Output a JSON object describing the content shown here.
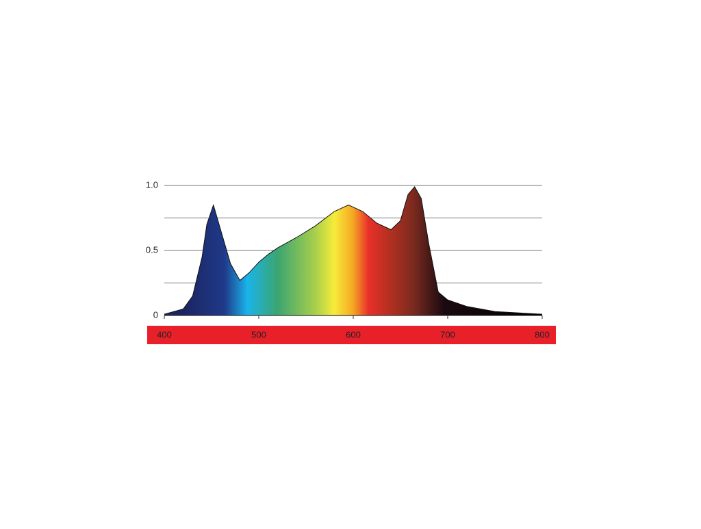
{
  "chart_data": {
    "type": "area",
    "x": [
      400,
      420,
      430,
      440,
      445,
      452,
      460,
      470,
      480,
      490,
      500,
      510,
      520,
      540,
      560,
      580,
      595,
      610,
      625,
      640,
      650,
      658,
      665,
      672,
      680,
      690,
      700,
      720,
      750,
      800
    ],
    "values": [
      0.01,
      0.05,
      0.15,
      0.45,
      0.7,
      0.85,
      0.65,
      0.4,
      0.27,
      0.33,
      0.41,
      0.47,
      0.52,
      0.6,
      0.69,
      0.8,
      0.85,
      0.8,
      0.71,
      0.66,
      0.73,
      0.93,
      0.99,
      0.9,
      0.55,
      0.18,
      0.12,
      0.07,
      0.03,
      0.01
    ],
    "xlim": [
      400,
      800
    ],
    "xticks": [
      400,
      500,
      600,
      700,
      800
    ],
    "ylim": [
      0,
      1
    ],
    "yticks": [
      0,
      0.5,
      {
        "value": 1,
        "label": "1.0"
      }
    ],
    "grid_lines": [
      0.25,
      0.5,
      0.75,
      1
    ]
  }
}
